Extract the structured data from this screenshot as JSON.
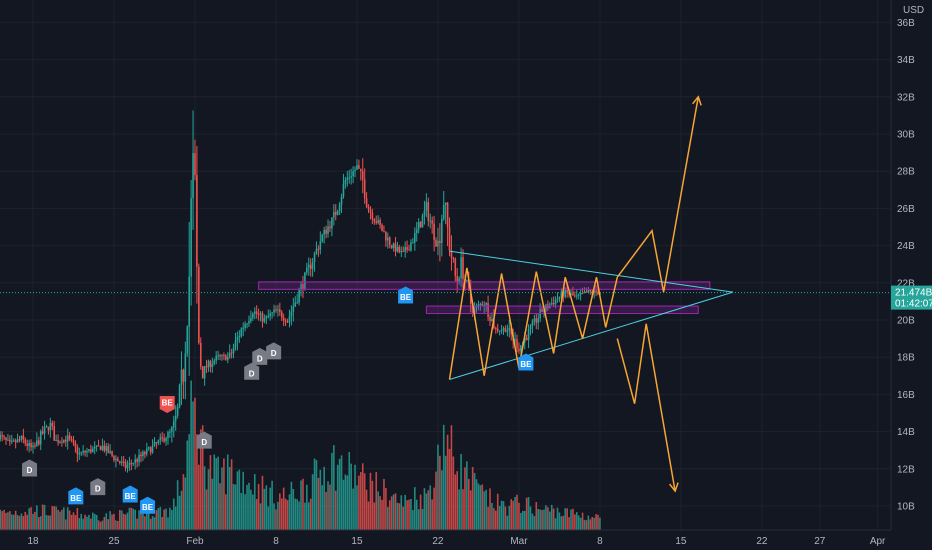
{
  "currency": "USD",
  "chart_data": {
    "type": "candlestick",
    "title": "",
    "ylim": [
      9,
      37
    ],
    "price_ticks": [
      10,
      12,
      14,
      16,
      18,
      20,
      22,
      24,
      26,
      28,
      30,
      32,
      34,
      36
    ],
    "price_tick_labels": [
      "10B",
      "12B",
      "14B",
      "16B",
      "18B",
      "20B",
      "22B",
      "24B",
      "26B",
      "28B",
      "30B",
      "32B",
      "34B",
      "36B"
    ],
    "x_ticks": [
      {
        "label": "18",
        "day": 0
      },
      {
        "label": "25",
        "day": 7
      },
      {
        "label": "Feb",
        "day": 14
      },
      {
        "label": "8",
        "day": 21
      },
      {
        "label": "15",
        "day": 28
      },
      {
        "label": "22",
        "day": 35
      },
      {
        "label": "Mar",
        "day": 42
      },
      {
        "label": "8",
        "day": 49
      },
      {
        "label": "15",
        "day": 56
      },
      {
        "label": "22",
        "day": 63
      },
      {
        "label": "27",
        "day": 68
      },
      {
        "label": "Apr",
        "day": 73
      }
    ],
    "price_path": [
      [
        -3,
        13.8
      ],
      [
        -2,
        13.3
      ],
      [
        -1,
        13.6
      ],
      [
        0,
        13.0
      ],
      [
        1,
        14.1
      ],
      [
        1.5,
        14.3
      ],
      [
        2,
        13.5
      ],
      [
        3,
        13.6
      ],
      [
        4,
        12.8
      ],
      [
        5,
        13.0
      ],
      [
        6,
        13.2
      ],
      [
        7,
        12.6
      ],
      [
        8,
        12.1
      ],
      [
        9,
        12.5
      ],
      [
        10,
        13.0
      ],
      [
        11,
        13.5
      ],
      [
        12,
        14.0
      ],
      [
        12.5,
        15.0
      ],
      [
        13,
        17.5
      ],
      [
        13.5,
        22.5
      ],
      [
        13.8,
        28.5
      ],
      [
        14,
        26.0
      ],
      [
        14.3,
        19.0
      ],
      [
        14.6,
        17.0
      ],
      [
        15,
        17.5
      ],
      [
        16,
        18.0
      ],
      [
        17,
        18.0
      ],
      [
        18,
        19.5
      ],
      [
        19,
        20.5
      ],
      [
        20,
        20.0
      ],
      [
        21,
        20.5
      ],
      [
        22,
        20.0
      ],
      [
        23,
        21.5
      ],
      [
        24,
        23.0
      ],
      [
        25,
        24.5
      ],
      [
        26,
        25.5
      ],
      [
        27,
        27.5
      ],
      [
        28,
        28.2
      ],
      [
        28.5,
        27.5
      ],
      [
        29,
        26.0
      ],
      [
        30,
        25.0
      ],
      [
        31,
        24.0
      ],
      [
        32,
        23.5
      ],
      [
        33,
        24.5
      ],
      [
        34,
        26.0
      ],
      [
        35,
        24.0
      ],
      [
        35.5,
        26.5
      ],
      [
        36,
        24.0
      ],
      [
        36.6,
        22.0
      ],
      [
        37,
        23.0
      ],
      [
        38,
        20.5
      ],
      [
        39,
        21.0
      ],
      [
        40,
        19.5
      ],
      [
        41,
        19.5
      ],
      [
        42,
        18.5
      ],
      [
        43,
        19.5
      ],
      [
        44,
        20.5
      ],
      [
        45,
        21.0
      ],
      [
        46,
        21.5
      ],
      [
        47,
        21.2
      ],
      [
        48,
        21.5
      ],
      [
        49,
        21.47
      ]
    ],
    "volume_ylim": [
      0,
      30
    ],
    "volume_path": [
      [
        -3,
        2.5
      ],
      [
        0,
        3
      ],
      [
        3,
        2.5
      ],
      [
        6,
        2
      ],
      [
        9,
        2.5
      ],
      [
        12,
        3
      ],
      [
        13,
        8
      ],
      [
        13.8,
        18
      ],
      [
        14.3,
        15
      ],
      [
        15,
        10
      ],
      [
        16,
        8
      ],
      [
        17,
        9
      ],
      [
        18,
        8
      ],
      [
        19,
        7
      ],
      [
        20,
        6
      ],
      [
        21,
        5
      ],
      [
        22,
        5
      ],
      [
        23,
        6
      ],
      [
        24,
        7
      ],
      [
        25,
        9
      ],
      [
        26,
        10
      ],
      [
        27,
        9
      ],
      [
        28,
        8
      ],
      [
        29,
        7
      ],
      [
        30,
        6
      ],
      [
        31,
        5
      ],
      [
        32,
        4
      ],
      [
        33,
        5
      ],
      [
        34,
        5
      ],
      [
        35,
        10
      ],
      [
        35.5,
        15
      ],
      [
        36,
        12
      ],
      [
        37,
        9
      ],
      [
        38,
        7
      ],
      [
        39,
        5
      ],
      [
        40,
        4
      ],
      [
        41,
        3.5
      ],
      [
        42,
        4
      ],
      [
        43,
        3.5
      ],
      [
        44,
        3
      ],
      [
        45,
        3
      ],
      [
        46,
        2.5
      ],
      [
        47,
        2.5
      ],
      [
        48,
        2
      ],
      [
        49,
        1.8
      ]
    ],
    "current_price": {
      "value": 21.474,
      "label": "21.474B",
      "countdown": "01:42:07"
    },
    "zones": [
      {
        "from_day": 19.5,
        "to_day": 58.5,
        "bottom": 21.65,
        "top": 22.05,
        "color": "#9c27b0"
      },
      {
        "from_day": 34,
        "to_day": 57.5,
        "bottom": 20.35,
        "top": 20.75,
        "color": "#9c27b0"
      }
    ],
    "triangle": {
      "color": "#4dd0e1",
      "apex": [
        60.5,
        21.5
      ],
      "upper_start": [
        36,
        23.7
      ],
      "lower_start": [
        36,
        16.8
      ]
    },
    "zigzag": {
      "color": "#f7a534",
      "points": [
        [
          36,
          16.8
        ],
        [
          37.5,
          22.8
        ],
        [
          39,
          17.0
        ],
        [
          40.5,
          22.5
        ],
        [
          42,
          17.4
        ],
        [
          43.5,
          22.6
        ],
        [
          45,
          18.2
        ],
        [
          46,
          22.3
        ],
        [
          47.5,
          19.0
        ],
        [
          48.7,
          22.3
        ],
        [
          49.5,
          19.6
        ],
        [
          50.5,
          22.3
        ]
      ]
    },
    "projections": [
      {
        "direction": "up",
        "color": "#f7a534",
        "points": [
          [
            50.5,
            22.3
          ],
          [
            53.5,
            24.8
          ],
          [
            54.5,
            21.5
          ],
          [
            57.5,
            32.0
          ]
        ]
      },
      {
        "direction": "down",
        "color": "#f7a534",
        "points": [
          [
            50.5,
            19.0
          ],
          [
            52,
            15.5
          ],
          [
            53,
            19.8
          ],
          [
            55.5,
            10.8
          ]
        ]
      }
    ],
    "signals": [
      {
        "label": "D",
        "day": -0.3,
        "price": 12.5,
        "pos": "below",
        "color": "#787b86"
      },
      {
        "label": "BE",
        "day": 3.7,
        "price": 11.0,
        "pos": "below",
        "color": "#2196f3"
      },
      {
        "label": "D",
        "day": 5.6,
        "price": 11.5,
        "pos": "below",
        "color": "#787b86"
      },
      {
        "label": "BE",
        "day": 8.4,
        "price": 11.1,
        "pos": "below",
        "color": "#2196f3"
      },
      {
        "label": "BE",
        "day": 9.9,
        "price": 10.5,
        "pos": "below",
        "color": "#2196f3"
      },
      {
        "label": "BE",
        "day": 11.6,
        "price": 15.0,
        "pos": "above",
        "color": "#ef5350"
      },
      {
        "label": "D",
        "day": 14.8,
        "price": 14.0,
        "pos": "below",
        "color": "#787b86"
      },
      {
        "label": "D",
        "day": 18.9,
        "price": 17.7,
        "pos": "below",
        "color": "#787b86"
      },
      {
        "label": "D",
        "day": 19.6,
        "price": 18.5,
        "pos": "below",
        "color": "#787b86"
      },
      {
        "label": "D",
        "day": 20.8,
        "price": 18.8,
        "pos": "below",
        "color": "#787b86"
      },
      {
        "label": "BE",
        "day": 32.2,
        "price": 21.8,
        "pos": "below",
        "color": "#2196f3"
      },
      {
        "label": "BE",
        "day": 42.6,
        "price": 18.2,
        "pos": "below",
        "color": "#2196f3"
      }
    ],
    "colors": {
      "background": "#131722",
      "grid": "#1e222d",
      "up": "#26a69a",
      "down": "#ef5350",
      "axis_text": "#b2b5be",
      "price_label": "#2962ff"
    }
  }
}
